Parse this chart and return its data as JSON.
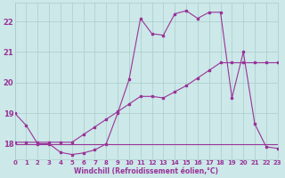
{
  "background_color": "#cce8e8",
  "grid_color": "#aacccc",
  "line_color": "#993399",
  "xlabel": "Windchill (Refroidissement éolien,°C)",
  "xlim": [
    0,
    23
  ],
  "ylim": [
    17.5,
    22.6
  ],
  "yticks": [
    18,
    19,
    20,
    21,
    22
  ],
  "xticks": [
    0,
    1,
    2,
    3,
    4,
    5,
    6,
    7,
    8,
    9,
    10,
    11,
    12,
    13,
    14,
    15,
    16,
    17,
    18,
    19,
    20,
    21,
    22,
    23
  ],
  "line1_x": [
    0,
    1,
    2,
    3,
    4,
    5,
    6,
    7,
    8,
    9,
    10,
    11,
    12,
    13,
    14,
    15,
    16,
    17,
    18,
    19,
    20,
    21,
    22,
    23
  ],
  "line1_y": [
    19.0,
    18.6,
    18.0,
    18.0,
    17.72,
    17.65,
    17.7,
    17.8,
    18.0,
    19.0,
    20.1,
    22.1,
    21.6,
    21.55,
    22.25,
    22.35,
    22.1,
    22.3,
    22.3,
    19.5,
    21.0,
    18.65,
    17.9,
    17.85
  ],
  "line2_x": [
    0,
    1,
    2,
    3,
    4,
    5,
    6,
    7,
    8,
    9,
    10,
    11,
    12,
    13,
    14,
    15,
    16,
    17,
    18,
    19,
    20,
    21,
    22,
    23
  ],
  "line2_y": [
    18.05,
    18.05,
    18.05,
    18.05,
    18.05,
    18.05,
    18.3,
    18.55,
    18.8,
    19.05,
    19.3,
    19.55,
    19.55,
    19.5,
    19.7,
    19.9,
    20.15,
    20.4,
    20.65,
    20.65,
    20.65,
    20.65,
    20.65,
    20.65
  ],
  "line3_x": [
    0,
    19,
    23
  ],
  "line3_y": [
    18.0,
    18.0,
    18.0
  ]
}
